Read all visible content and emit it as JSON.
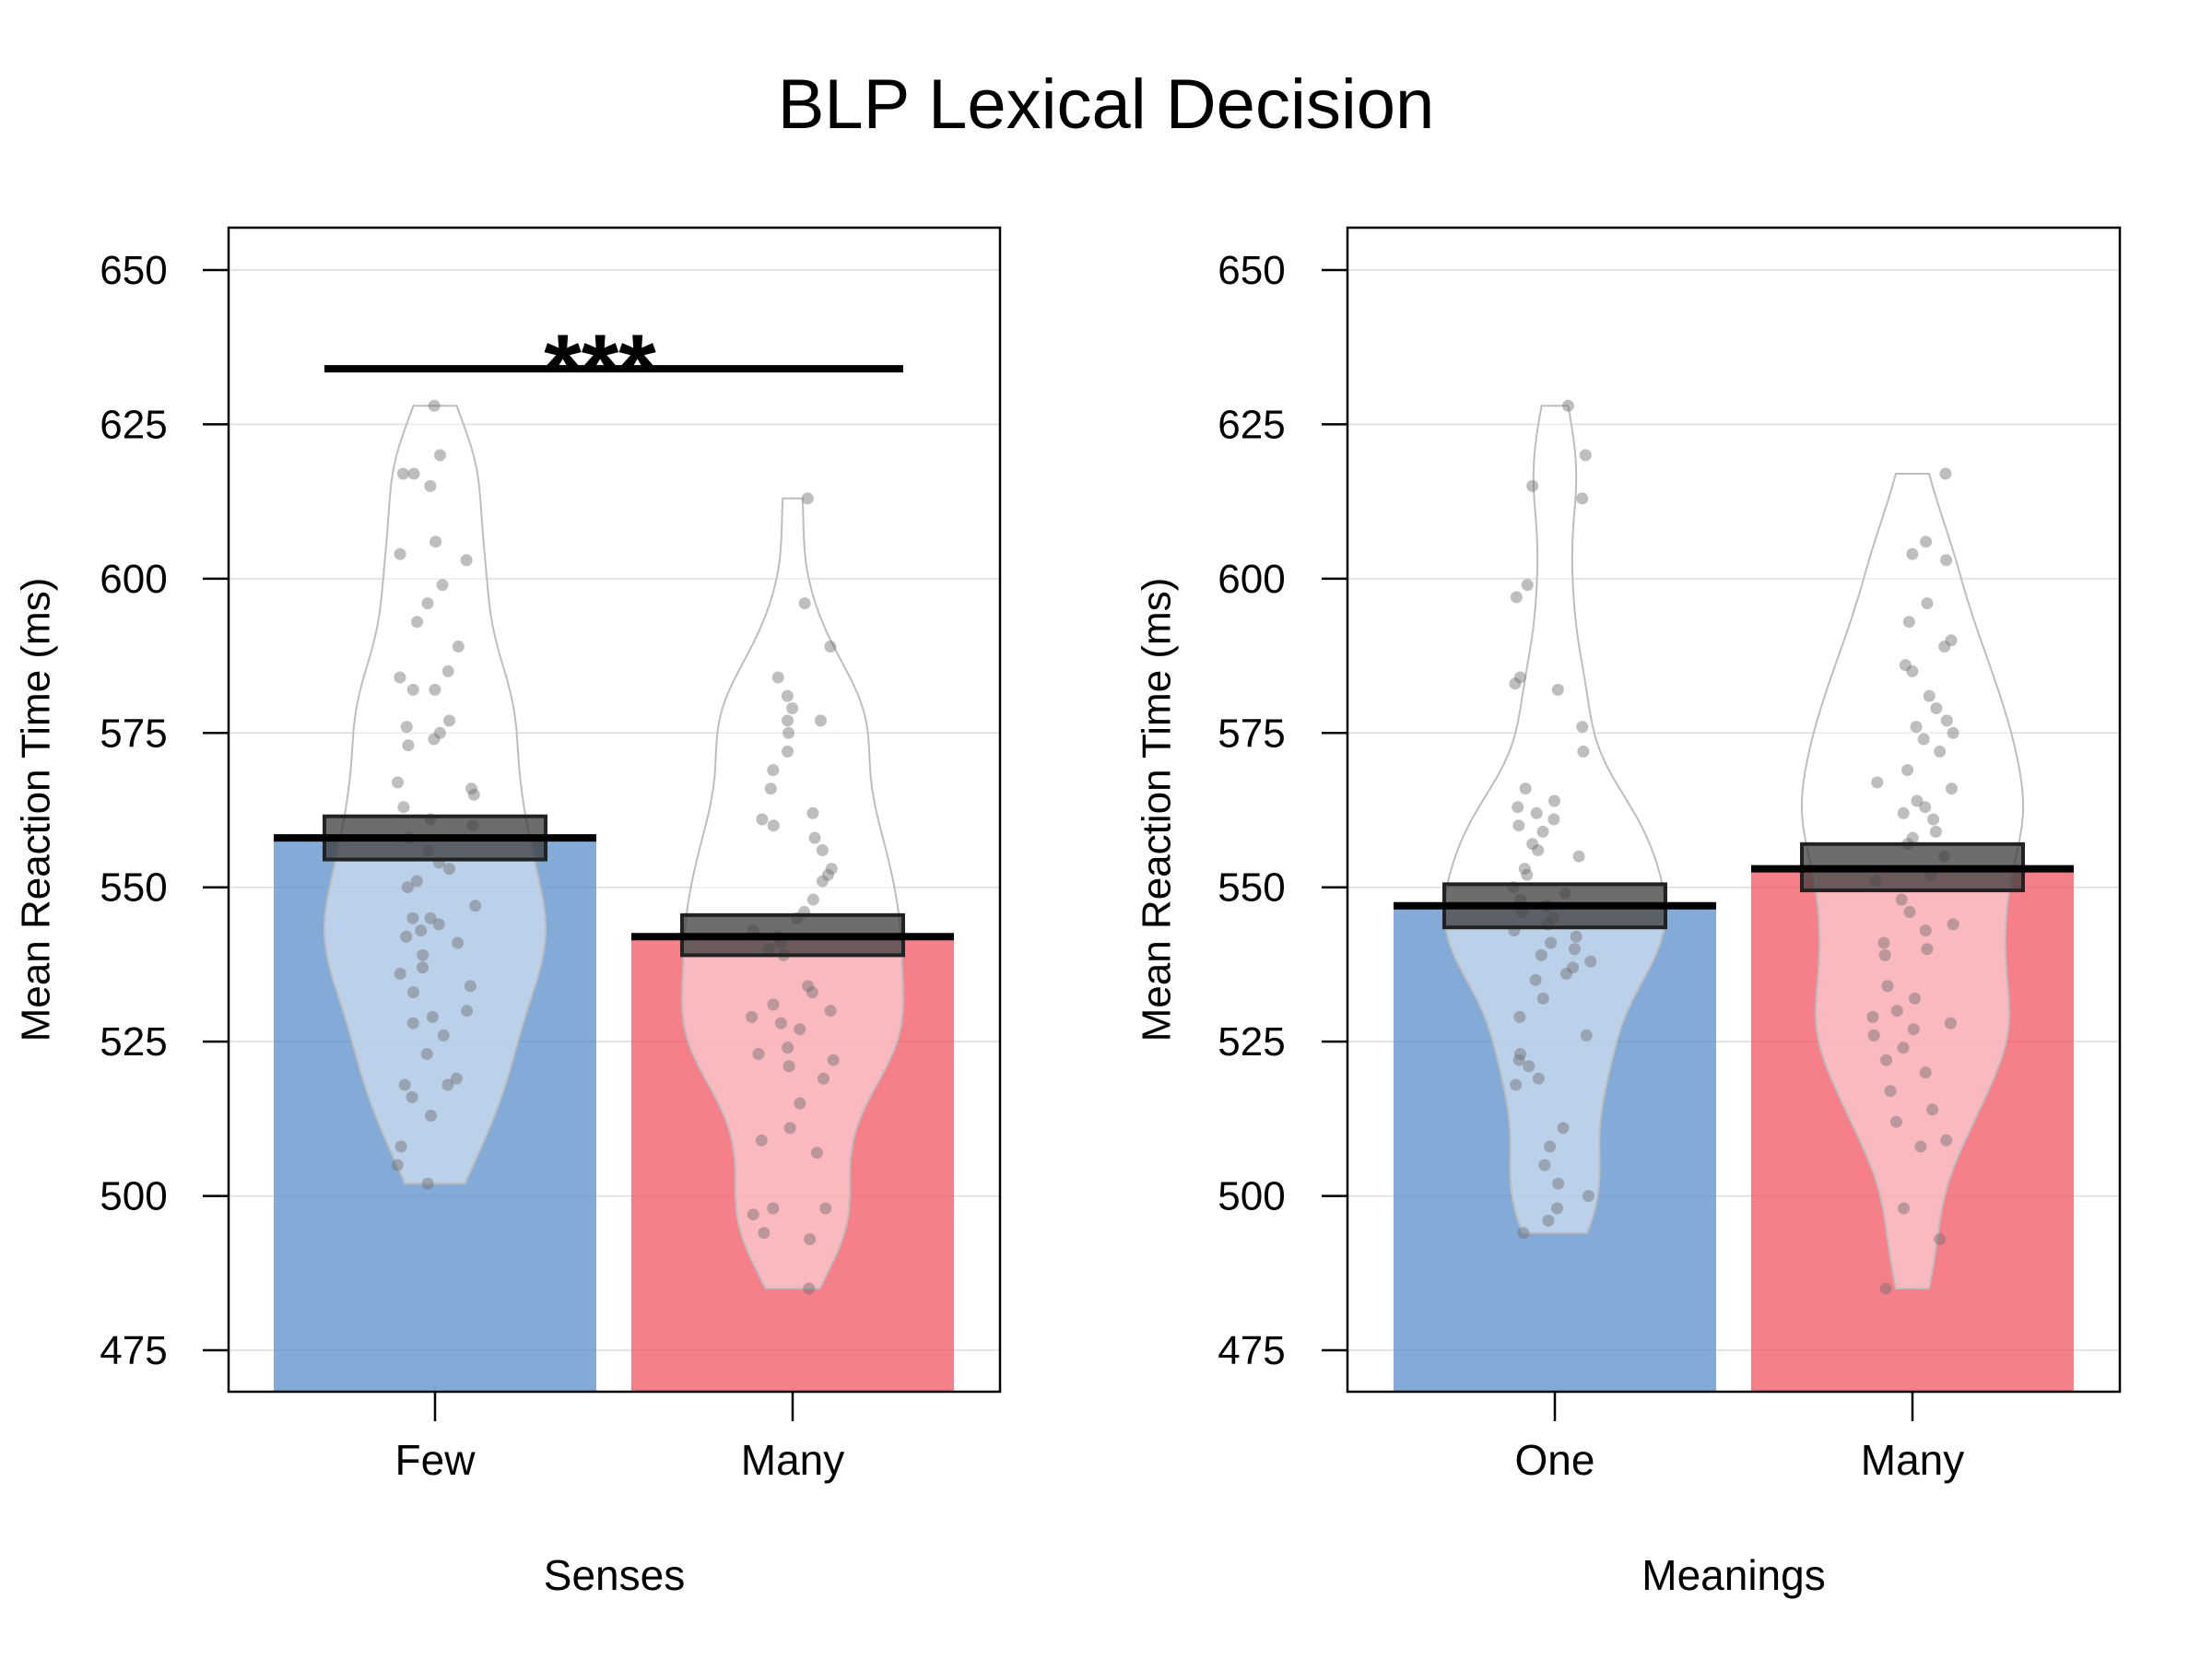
{
  "title": "BLP Lexical Decision",
  "chart_data": [
    {
      "type": "bar",
      "title": "",
      "xlabel": "Senses",
      "ylabel": "Mean Reaction Time (ms)",
      "ylim": [
        468,
        657
      ],
      "yticks": [
        475,
        500,
        525,
        550,
        575,
        600,
        625,
        650
      ],
      "grid": true,
      "categories": [
        "Few",
        "Many"
      ],
      "values": [
        558,
        542
      ],
      "ci": [
        [
          554.5,
          561.5
        ],
        [
          539,
          545.5
        ]
      ],
      "colors": [
        "#5b8ec9",
        "#f25563"
      ],
      "violin_range": [
        [
          502,
          628
        ],
        [
          485,
          613
        ]
      ],
      "annotation": {
        "text": "***",
        "y": 634,
        "from": "Few",
        "to": "Many"
      },
      "points": [
        [
          628,
          620,
          617,
          617,
          615,
          606,
          604,
          603,
          599,
          596,
          593,
          589,
          585,
          584,
          582,
          582,
          577,
          576,
          575,
          574,
          573,
          567,
          566,
          565,
          563,
          561,
          560,
          558,
          556,
          554,
          553,
          551,
          550,
          547,
          545,
          545,
          544,
          543,
          542,
          541,
          539,
          537,
          536,
          534,
          533,
          530,
          529,
          528,
          526,
          523,
          519,
          518,
          518,
          516,
          513,
          508,
          505,
          502
        ],
        [
          613,
          596,
          589,
          584,
          581,
          579,
          577,
          577,
          575,
          572,
          569,
          566,
          562,
          561,
          560,
          558,
          556,
          553,
          552,
          551,
          548,
          546,
          545,
          543,
          542,
          541,
          540,
          539,
          534,
          533,
          531,
          530,
          529,
          528,
          527,
          524,
          523,
          522,
          521,
          519,
          515,
          511,
          509,
          507,
          498,
          498,
          497,
          494,
          493,
          485
        ]
      ]
    },
    {
      "type": "bar",
      "title": "",
      "xlabel": "Meanings",
      "ylabel": "Mean Reaction Time (ms)",
      "ylim": [
        468,
        657
      ],
      "yticks": [
        475,
        500,
        525,
        550,
        575,
        600,
        625,
        650
      ],
      "grid": true,
      "categories": [
        "One",
        "Many"
      ],
      "values": [
        547,
        553
      ],
      "ci": [
        [
          543.5,
          550.5
        ],
        [
          549.5,
          557
        ]
      ],
      "colors": [
        "#5b8ec9",
        "#f25563"
      ],
      "violin_range": [
        [
          494,
          628
        ],
        [
          485,
          617
        ]
      ],
      "points": [
        [
          628,
          620,
          615,
          613,
          599,
          597,
          584,
          583,
          582,
          576,
          572,
          566,
          564,
          563,
          562,
          561,
          560,
          559,
          557,
          556,
          555,
          553,
          552,
          550,
          549,
          548,
          547,
          546,
          545,
          544,
          543,
          542,
          541,
          540,
          539,
          538,
          537,
          536,
          535,
          532,
          529,
          526,
          523,
          522,
          521,
          519,
          518,
          511,
          508,
          505,
          502,
          500,
          498,
          496,
          494
        ],
        [
          617,
          606,
          604,
          603,
          596,
          593,
          590,
          589,
          586,
          585,
          581,
          579,
          577,
          576,
          575,
          574,
          572,
          569,
          567,
          566,
          564,
          563,
          562,
          561,
          559,
          558,
          557,
          555,
          552,
          551,
          548,
          546,
          544,
          543,
          541,
          540,
          539,
          534,
          532,
          530,
          529,
          528,
          527,
          526,
          524,
          522,
          520,
          517,
          514,
          512,
          509,
          508,
          498,
          493,
          485
        ]
      ]
    }
  ]
}
